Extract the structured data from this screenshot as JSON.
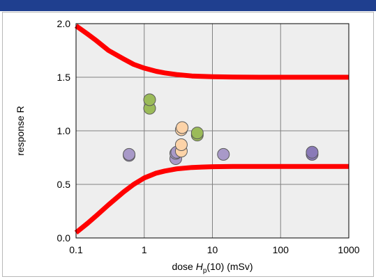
{
  "colors": {
    "header_bar": "#1f3f8f",
    "plot_background": "#eeeeee",
    "gridline": "#808080",
    "limit_curve": "#ff0000",
    "point_purple": "#a899c8",
    "point_purple_dark": "#8a7ab8",
    "point_orange": "#fcd3a8",
    "point_green": "#9bbb59"
  },
  "chart_data": {
    "type": "scatter",
    "xlabel_prefix": "dose ",
    "xlabel_symbol": "H",
    "xlabel_subscript": "p",
    "xlabel_suffix": "(10) (mSv)",
    "ylabel": "response  R",
    "x_scale": "log",
    "xlim": [
      0.1,
      1000
    ],
    "ylim": [
      0.0,
      2.0
    ],
    "x_ticks": [
      {
        "value": 0.1,
        "label": "0.1"
      },
      {
        "value": 1,
        "label": "1"
      },
      {
        "value": 10,
        "label": "10"
      },
      {
        "value": 100,
        "label": "100"
      },
      {
        "value": 1000,
        "label": "1000"
      }
    ],
    "y_ticks": [
      {
        "value": 0.0,
        "label": "0.0"
      },
      {
        "value": 0.5,
        "label": "0.5"
      },
      {
        "value": 1.0,
        "label": "1.0"
      },
      {
        "value": 1.5,
        "label": "1.5"
      },
      {
        "value": 2.0,
        "label": "2.0"
      }
    ],
    "grid": true,
    "limit_curves": [
      {
        "x": [
          0.1,
          0.15,
          0.2,
          0.3,
          0.5,
          0.7,
          1,
          1.5,
          2,
          3,
          5,
          7,
          10,
          20,
          50,
          100,
          300,
          1000
        ],
        "y": [
          1.98,
          1.9,
          1.84,
          1.75,
          1.67,
          1.62,
          1.585,
          1.555,
          1.54,
          1.525,
          1.512,
          1.508,
          1.505,
          1.502,
          1.5,
          1.5,
          1.5,
          1.5
        ]
      },
      {
        "x": [
          0.1,
          0.15,
          0.2,
          0.3,
          0.5,
          0.7,
          1,
          1.5,
          2,
          3,
          5,
          7,
          10,
          20,
          50,
          100,
          300,
          1000
        ],
        "y": [
          0.05,
          0.14,
          0.21,
          0.31,
          0.43,
          0.5,
          0.56,
          0.605,
          0.625,
          0.645,
          0.658,
          0.662,
          0.665,
          0.667,
          0.667,
          0.667,
          0.667,
          0.667
        ]
      }
    ],
    "series": [
      {
        "color": "#a899c8",
        "points": [
          [
            0.6,
            0.77
          ],
          [
            0.6,
            0.78
          ],
          [
            2.9,
            0.74
          ],
          [
            2.9,
            0.79
          ],
          [
            3.0,
            0.8
          ],
          [
            14.5,
            0.78
          ]
        ]
      },
      {
        "color": "#8a7ab8",
        "points": [
          [
            290,
            0.78
          ],
          [
            290,
            0.8
          ]
        ]
      },
      {
        "color": "#fcd3a8",
        "points": [
          [
            3.5,
            0.81
          ],
          [
            3.5,
            0.87
          ],
          [
            3.5,
            1.01
          ],
          [
            3.6,
            1.03
          ]
        ]
      },
      {
        "color": "#9bbb59",
        "points": [
          [
            1.2,
            1.21
          ],
          [
            1.2,
            1.29
          ],
          [
            6.0,
            0.96
          ],
          [
            6.0,
            0.98
          ]
        ]
      }
    ]
  }
}
